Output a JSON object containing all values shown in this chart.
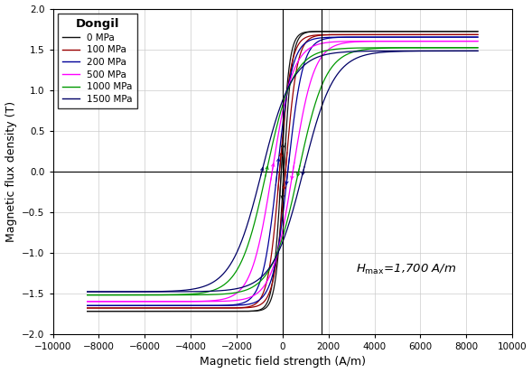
{
  "title": "",
  "xlabel": "Magnetic field strength (A/m)",
  "ylabel": "Magnetic flux density (T)",
  "legend_title": "Dongil",
  "xlim": [
    -10000,
    10000
  ],
  "ylim": [
    -2.0,
    2.0
  ],
  "xticks": [
    -10000,
    -8000,
    -6000,
    -4000,
    -2000,
    0,
    2000,
    4000,
    6000,
    8000,
    10000
  ],
  "yticks": [
    -2.0,
    -1.5,
    -1.0,
    -0.5,
    0.0,
    0.5,
    1.0,
    1.5,
    2.0
  ],
  "vline_x": 1700,
  "series": [
    {
      "label": "0 MPa",
      "color": "#111111",
      "Hc": 55,
      "Bsat": 1.72,
      "k": 0.0028,
      "alpha": 0.0
    },
    {
      "label": "100 MPa",
      "color": "#990000",
      "Hc": 130,
      "Bsat": 1.68,
      "k": 0.002,
      "alpha": 0.0
    },
    {
      "label": "200 MPa",
      "color": "#000099",
      "Hc": 230,
      "Bsat": 1.65,
      "k": 0.00155,
      "alpha": 0.0
    },
    {
      "label": "500 MPa",
      "color": "#FF00FF",
      "Hc": 450,
      "Bsat": 1.6,
      "k": 0.0011,
      "alpha": 0.0
    },
    {
      "label": "1000 MPa",
      "color": "#009900",
      "Hc": 700,
      "Bsat": 1.52,
      "k": 0.00085,
      "alpha": 0.0
    },
    {
      "label": "1500 MPa",
      "color": "#000066",
      "Hc": 900,
      "Bsat": 1.48,
      "k": 0.00075,
      "alpha": 0.0
    }
  ],
  "figsize": [
    5.89,
    4.13
  ],
  "dpi": 100,
  "background_color": "#ffffff",
  "grid_color": "#cccccc",
  "legend_fontsize": 7.5,
  "axis_fontsize": 9
}
